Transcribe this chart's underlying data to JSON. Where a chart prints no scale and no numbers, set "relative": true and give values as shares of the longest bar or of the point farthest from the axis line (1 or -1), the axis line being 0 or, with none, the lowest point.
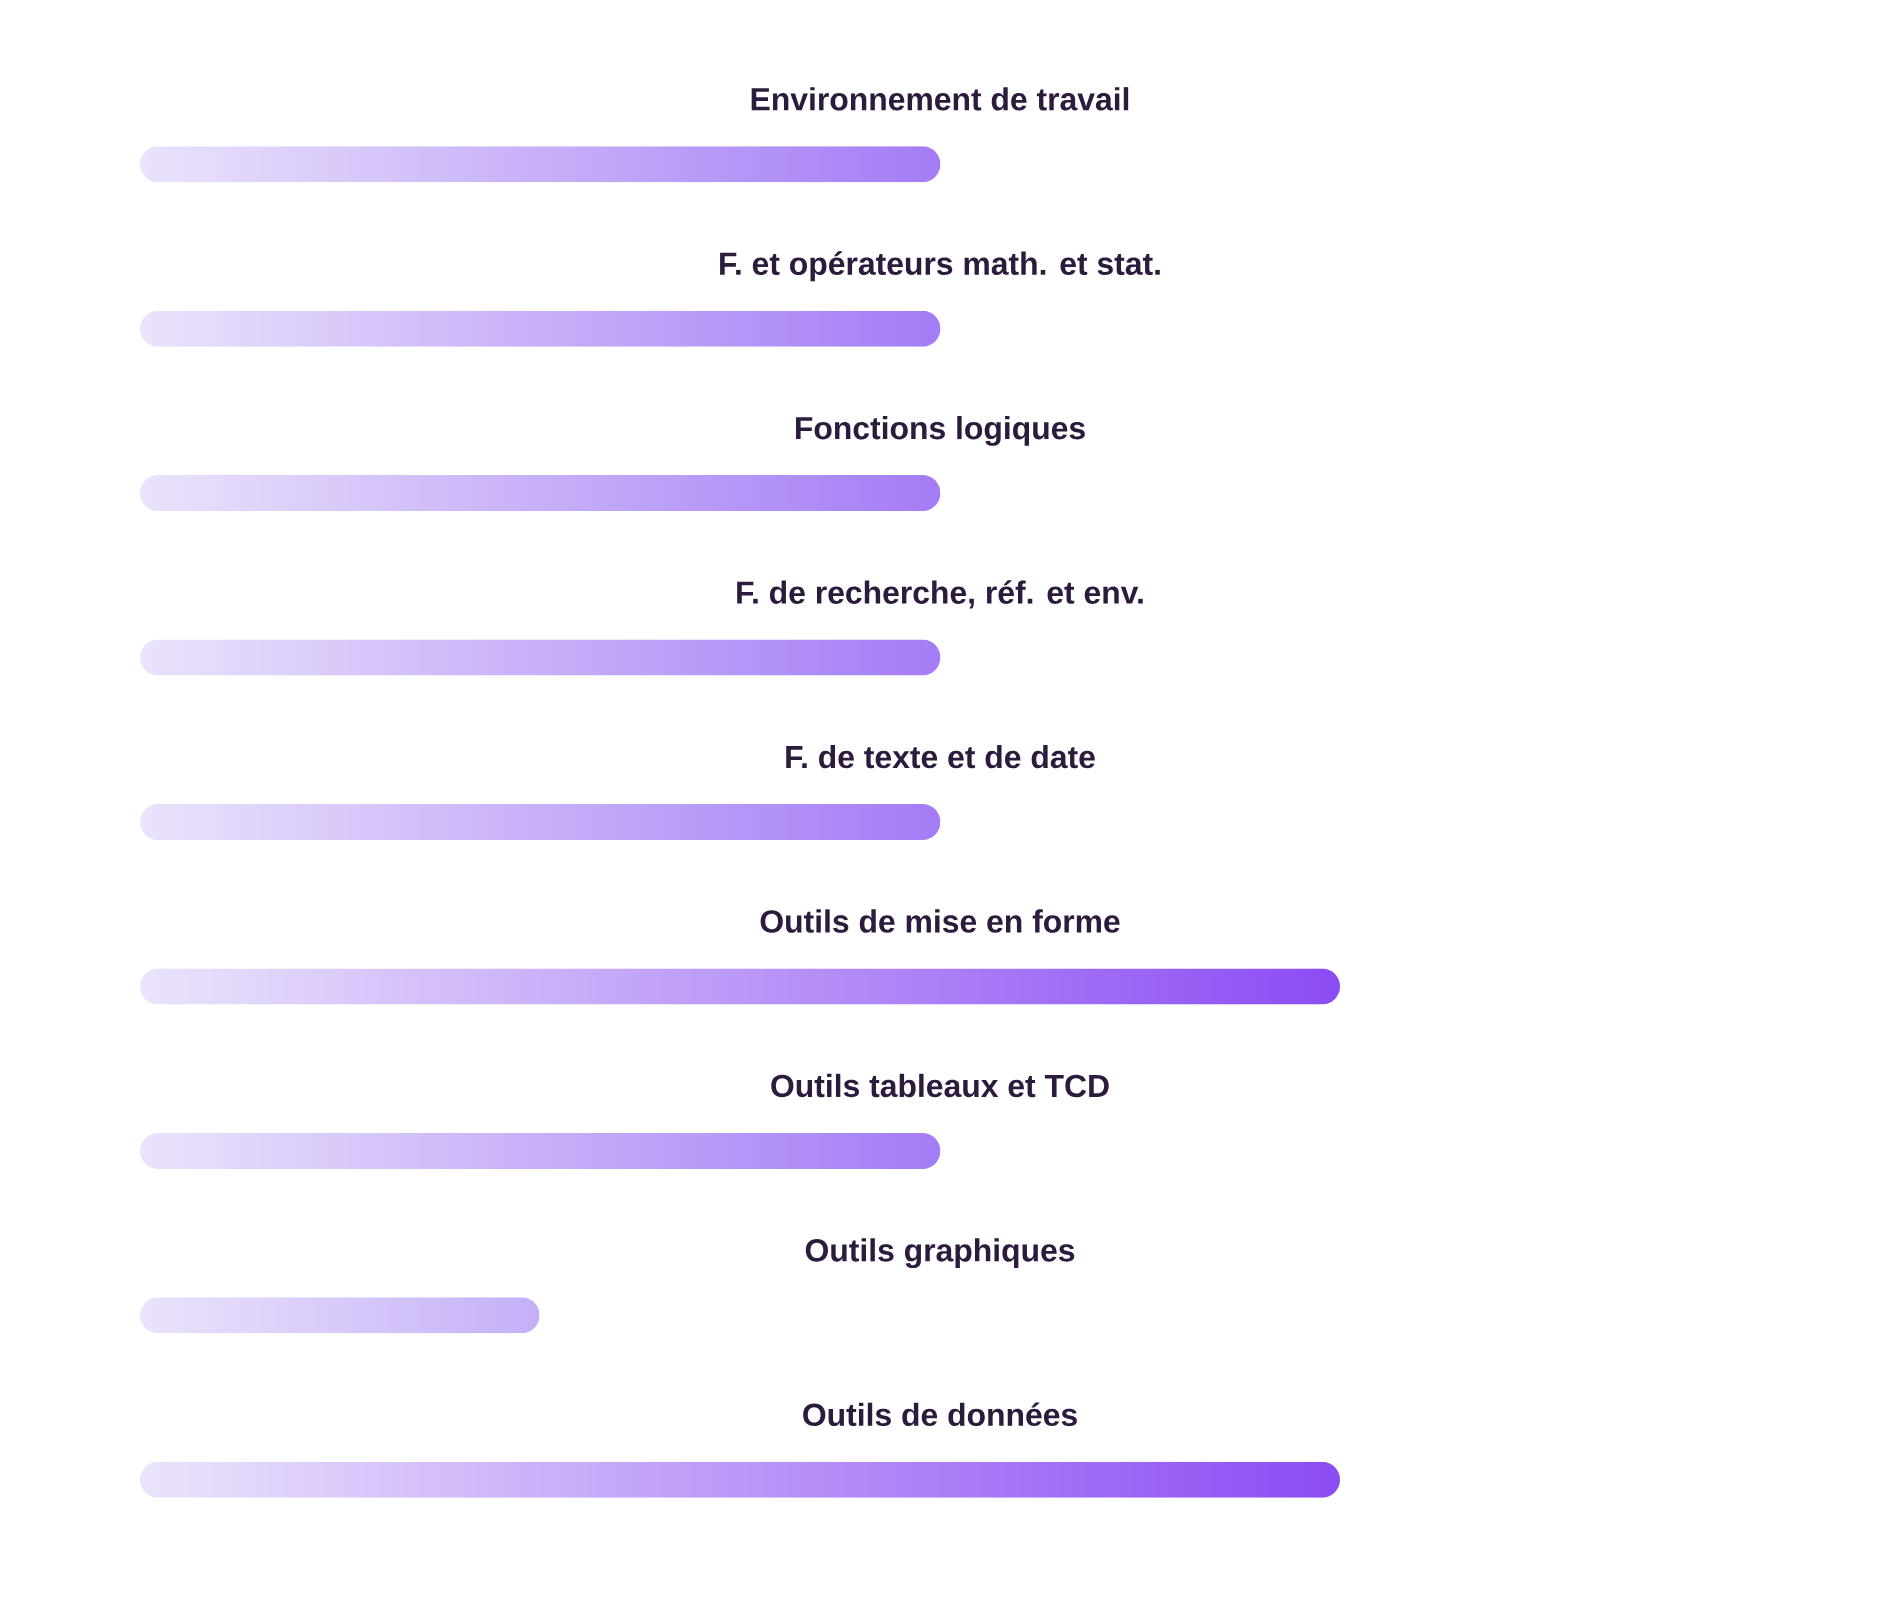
{
  "chart_data": {
    "type": "bar",
    "orientation": "horizontal",
    "relative": true,
    "categories": [
      "Environnement de travail",
      "F. et opérateurs math. et stat.",
      "Fonctions logiques",
      "F. de recherche, réf. et env.",
      "F. de texte et de date",
      "Outils de mise en forme",
      "Outils tableaux et TCD",
      "Outils graphiques",
      "Outils de données"
    ],
    "values": [
      0.667,
      0.667,
      0.667,
      0.667,
      0.667,
      1,
      0.667,
      0.333,
      1
    ],
    "colors": [
      "#a47cf6",
      "#a47cf6",
      "#a47cf6",
      "#a47cf6",
      "#a47cf6",
      "#8b4cf4",
      "#a47cf6",
      "#c5b0f8",
      "#8b4cf4"
    ]
  }
}
